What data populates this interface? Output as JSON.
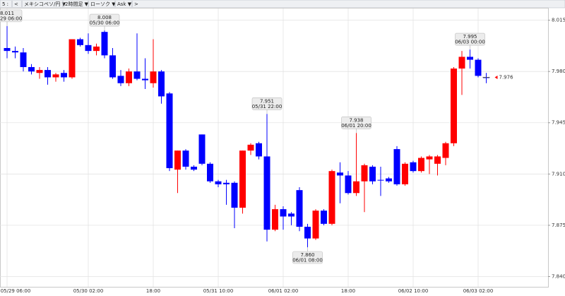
{
  "toolbar": [
    "5 :",
    "<",
    "メキシコペソ/円 ▼",
    "2時間足 ▼",
    "ローソク ▼",
    "Ask ▼",
    ">"
  ],
  "chart_data": {
    "type": "candlestick",
    "categories": [
      "05/29 06:00",
      null,
      null,
      null,
      null,
      null,
      null,
      null,
      null,
      null,
      "05/30 02:00",
      null,
      null,
      null,
      null,
      null,
      null,
      null,
      "18:00",
      null,
      null,
      null,
      null,
      null,
      null,
      null,
      "05/31 10:00",
      null,
      null,
      null,
      null,
      null,
      null,
      null,
      "06/01 02:00",
      null,
      null,
      null,
      null,
      null,
      null,
      null,
      "18:00",
      null,
      null,
      null,
      null,
      null,
      null,
      null,
      "06/02 10:00",
      null,
      null,
      null,
      null,
      null,
      null,
      null,
      "06/03 02:00",
      null
    ],
    "open": [
      7.996,
      7.994,
      7.993,
      7.983,
      7.979,
      7.981,
      7.976,
      7.979,
      7.976,
      8.002,
      7.998,
      7.994,
      8.007,
      7.991,
      7.977,
      7.972,
      7.98,
      7.975,
      7.972,
      7.98,
      7.965,
      7.913,
      7.926,
      7.915,
      7.937,
      7.917,
      7.905,
      7.904,
      7.904,
      7.887,
      7.926,
      7.931,
      7.922,
      7.872,
      7.886,
      7.883,
      7.899,
      7.874,
      7.866,
      7.885,
      7.876,
      7.911,
      7.909,
      7.897,
      7.905,
      7.915,
      7.906,
      7.907,
      7.927,
      7.903,
      7.918,
      7.912,
      7.92,
      7.917,
      7.921,
      7.931,
      7.982,
      7.99,
      7.988,
      7.976
    ],
    "high": [
      8.011,
      7.997,
      7.996,
      7.985,
      7.983,
      7.983,
      7.979,
      7.981,
      8.002,
      8.003,
      8.006,
      7.999,
      8.008,
      7.996,
      7.981,
      7.982,
      8.006,
      7.989,
      8.002,
      7.981,
      7.966,
      7.926,
      7.927,
      7.916,
      7.937,
      7.918,
      7.906,
      7.906,
      7.905,
      7.926,
      7.931,
      7.932,
      7.951,
      7.889,
      7.888,
      7.884,
      7.901,
      7.876,
      7.886,
      7.886,
      7.913,
      7.918,
      7.912,
      7.938,
      7.917,
      7.916,
      7.915,
      7.908,
      7.929,
      7.918,
      7.919,
      7.922,
      7.923,
      7.923,
      7.932,
      7.983,
      7.994,
      7.995,
      7.989,
      7.979
    ],
    "low": [
      7.989,
      7.989,
      7.98,
      7.978,
      7.975,
      7.971,
      7.973,
      7.973,
      7.975,
      7.997,
      7.992,
      7.991,
      7.989,
      7.975,
      7.97,
      7.97,
      7.974,
      7.968,
      7.969,
      7.958,
      7.912,
      7.897,
      7.913,
      7.912,
      7.916,
      7.904,
      7.901,
      7.889,
      7.873,
      7.883,
      7.923,
      7.92,
      7.864,
      7.871,
      7.872,
      7.875,
      7.871,
      7.86,
      7.865,
      7.875,
      7.875,
      7.89,
      7.896,
      7.895,
      7.884,
      7.903,
      7.895,
      7.904,
      7.902,
      7.902,
      7.911,
      7.911,
      7.91,
      7.909,
      7.916,
      7.929,
      7.964,
      7.982,
      7.976,
      7.972
    ],
    "close": [
      7.994,
      7.993,
      7.983,
      7.98,
      7.981,
      7.976,
      7.978,
      7.976,
      8.002,
      7.998,
      7.994,
      7.997,
      7.991,
      7.976,
      7.972,
      7.98,
      7.975,
      7.974,
      7.98,
      7.963,
      7.914,
      7.926,
      7.915,
      7.913,
      7.917,
      7.905,
      7.903,
      7.903,
      7.887,
      7.926,
      7.93,
      7.922,
      7.872,
      7.886,
      7.881,
      7.881,
      7.874,
      7.866,
      7.885,
      7.876,
      7.912,
      7.909,
      7.897,
      7.905,
      7.916,
      7.905,
      7.906,
      7.905,
      7.903,
      7.917,
      7.912,
      7.921,
      7.922,
      7.922,
      7.931,
      7.982,
      7.99,
      7.988,
      7.977,
      7.976
    ],
    "up_color": "#ff0000",
    "down_color": "#0000ff",
    "ylim": [
      7.833,
      8.023
    ],
    "yticks": [
      {
        "value": 7.84,
        "label": "7.840"
      },
      7.875,
      {
        "value": 7.91,
        "label": "7.910"
      },
      7.945,
      {
        "value": 7.98,
        "label": "7.980"
      },
      8.015
    ],
    "grid": true,
    "annotations": [
      {
        "value": 8.011,
        "time": "05/29 06:00"
      },
      {
        "value": 8.008,
        "time": "05/30 06:00"
      },
      {
        "value": 7.951,
        "time": "05/31 22:00"
      },
      {
        "value": {
          "value": 7.86,
          "label": "7.860"
        },
        "time": "06/01 08:00"
      },
      {
        "value": 7.938,
        "time": "06/01 20:00"
      },
      {
        "value": 7.995,
        "time": "06/03 00:00"
      }
    ],
    "last_price": 7.976,
    "last_price_color": "#ff0000"
  }
}
